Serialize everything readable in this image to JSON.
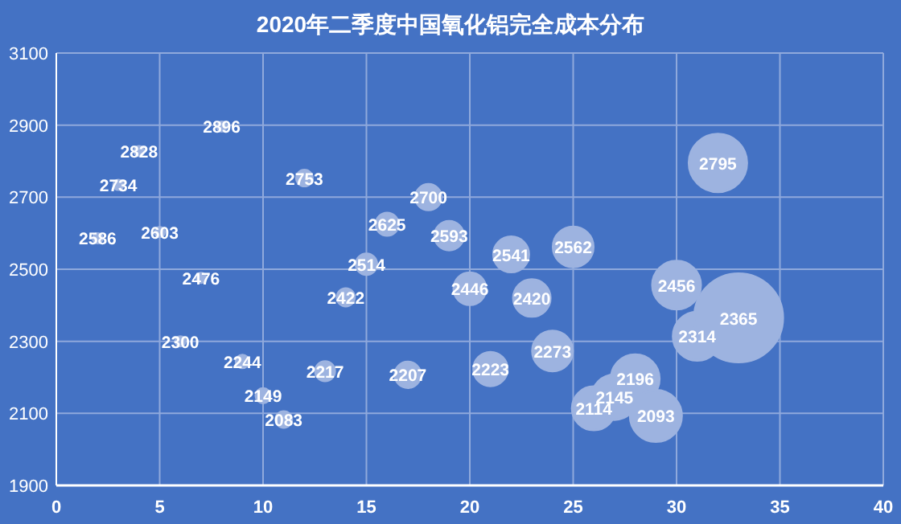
{
  "chart_data": {
    "type": "bubble",
    "title": "2020年二季度中国氧化铝完全成本分布",
    "x": [
      2,
      3,
      4,
      5,
      6,
      7,
      8,
      9,
      10,
      11,
      12,
      13,
      14,
      15,
      16,
      17,
      18,
      19,
      20,
      21,
      22,
      23,
      24,
      25,
      26,
      27,
      28,
      29,
      30,
      31,
      32,
      33
    ],
    "values": [
      2586,
      2734,
      2828,
      2603,
      2300,
      2476,
      2896,
      2244,
      2149,
      2083,
      2753,
      2217,
      2422,
      2514,
      2625,
      2207,
      2700,
      2593,
      2446,
      2223,
      2541,
      2420,
      2273,
      2562,
      2114,
      2145,
      2196,
      2093,
      2456,
      2314,
      2795,
      2365
    ],
    "sizes": [
      0.012,
      0.012,
      0.012,
      0.012,
      0.012,
      0.012,
      0.012,
      0.021,
      0.027,
      0.033,
      0.033,
      0.048,
      0.04,
      0.056,
      0.065,
      0.085,
      0.085,
      0.107,
      0.132,
      0.146,
      0.16,
      0.175,
      0.207,
      0.207,
      0.241,
      0.259,
      0.298,
      0.339,
      0.298,
      0.298,
      0.428,
      1
    ],
    "color": "#9db3e0",
    "xlim": [
      0,
      40
    ],
    "xticks": [
      0,
      5,
      10,
      15,
      20,
      25,
      30,
      35,
      40
    ],
    "ylim": [
      1900,
      3100
    ],
    "yticks": [
      1900,
      2100,
      2300,
      2500,
      2700,
      2900,
      3100
    ],
    "grid": true,
    "data_labels": true,
    "marker": "circle"
  }
}
